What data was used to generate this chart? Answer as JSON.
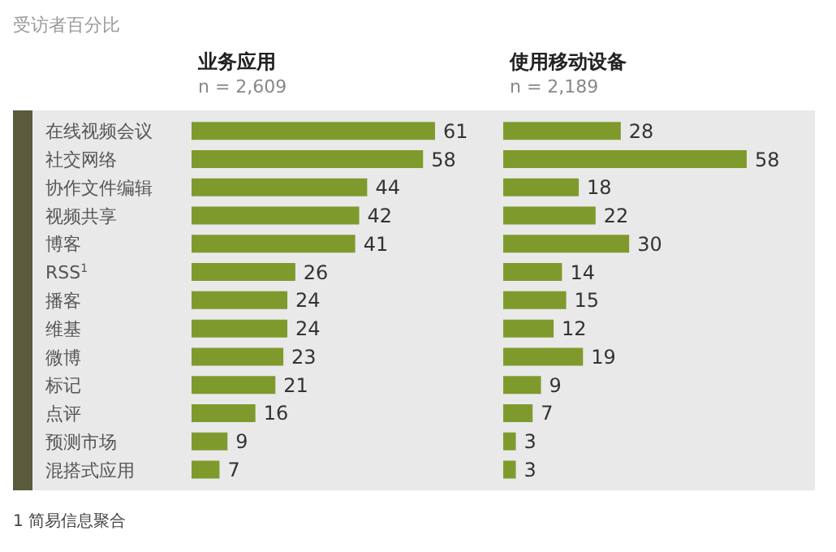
{
  "chart_data": [
    {
      "type": "bar",
      "orientation": "horizontal",
      "title": "业务应用",
      "subtitle": "n = 2,609",
      "annotations": [
        "受访者百分比",
        "1 简易信息聚合"
      ],
      "categories": [
        "在线视频会议",
        "社交网络",
        "协作文件编辑",
        "视频共享",
        "博客",
        "RSS$^{1}$",
        "播客",
        "维基",
        "微博",
        "标记",
        "点评",
        "预测市场",
        "混搭式应用"
      ],
      "values": [
        61,
        58,
        44,
        42,
        41,
        26,
        24,
        24,
        23,
        21,
        16,
        9,
        7
      ],
      "color": "#7f9a2c",
      "data_labels": true,
      "tick_labels": "y"
    },
    {
      "type": "bar",
      "orientation": "horizontal",
      "title": "使用移动设备",
      "subtitle": "n = 2,189",
      "categories": [
        null,
        null,
        null,
        null,
        null,
        null,
        null,
        null,
        null,
        null,
        null,
        null,
        null
      ],
      "values": [
        28,
        58,
        18,
        22,
        30,
        14,
        15,
        12,
        19,
        9,
        7,
        3,
        3
      ],
      "color": "#7f9a2c",
      "data_labels": true,
      "tick_labels": false
    }
  ]
}
